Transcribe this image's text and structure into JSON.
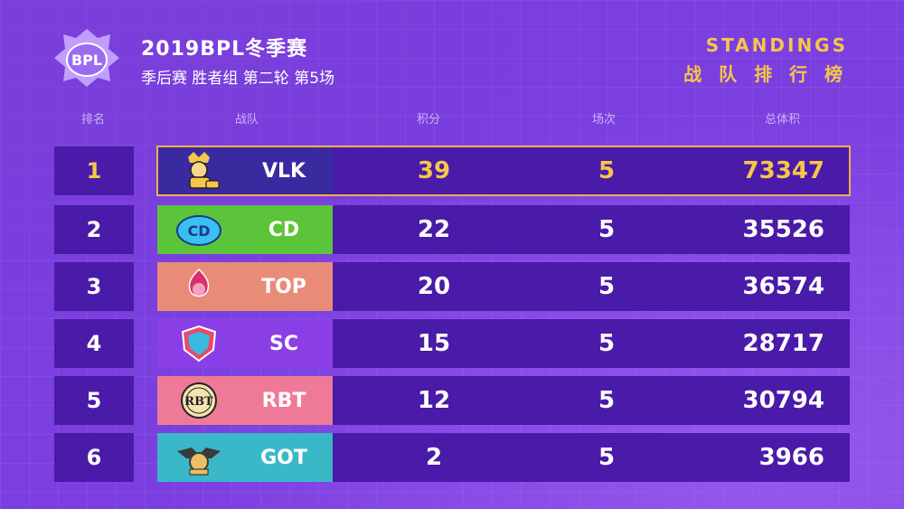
{
  "header": {
    "title": "2019BPL冬季赛",
    "subtitle": "季后赛 胜者组 第二轮 第5场",
    "standings_en": "STANDINGS",
    "standings_cn": "战 队 排 行 榜",
    "logo_text": "BPL"
  },
  "columns": {
    "rank": "排名",
    "team": "战队",
    "points": "积分",
    "played": "场次",
    "total": "总体积"
  },
  "colors": {
    "background": "#7b3fe0",
    "row": "#4a1aa8",
    "highlight": "#f5c64a",
    "team_vlk": "#3a2aa0",
    "team_cd": "#5cc43a",
    "team_top": "#e88c78",
    "team_sc": "#8a3fe6",
    "team_rbt": "#ee7a98",
    "team_got": "#3ab8c8"
  },
  "rows": [
    {
      "rank": "1",
      "team": "VLK",
      "points": "39",
      "played": "5",
      "total": "73347",
      "logo_icon": "vlk-mascot-icon"
    },
    {
      "rank": "2",
      "team": "CD",
      "points": "22",
      "played": "5",
      "total": "35526",
      "logo_icon": "cd-logo-icon"
    },
    {
      "rank": "3",
      "team": "TOP",
      "points": "20",
      "played": "5",
      "total": "36574",
      "logo_icon": "top-logo-icon"
    },
    {
      "rank": "4",
      "team": "SC",
      "points": "15",
      "played": "5",
      "total": "28717",
      "logo_icon": "sc-logo-icon"
    },
    {
      "rank": "5",
      "team": "RBT",
      "points": "12",
      "played": "5",
      "total": "30794",
      "logo_icon": "rbt-logo-icon"
    },
    {
      "rank": "6",
      "team": "GOT",
      "points": "2",
      "played": "5",
      "total": "3966",
      "logo_icon": "got-logo-icon"
    }
  ]
}
